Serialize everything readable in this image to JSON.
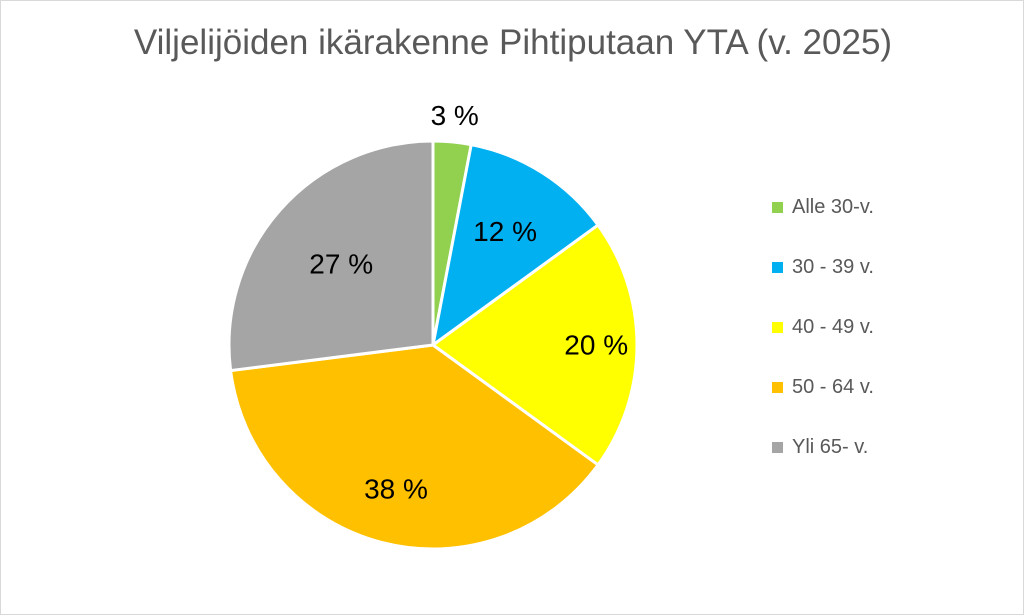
{
  "chart_data": {
    "type": "pie",
    "title": "Viljelijöiden ikärakenne Pihtiputaan YTA (v. 2025)",
    "categories": [
      "Alle 30-v.",
      "30 - 39 v.",
      "40 - 49 v.",
      "50 - 64 v.",
      "Yli 65- v."
    ],
    "values": [
      3,
      12,
      20,
      38,
      27
    ],
    "data_labels": [
      "3 %",
      "12 %",
      "20 %",
      "38 %",
      "27 %"
    ],
    "colors": [
      "#92d050",
      "#00b0f0",
      "#ffff00",
      "#ffc000",
      "#a5a5a5"
    ],
    "legend_position": "right"
  }
}
